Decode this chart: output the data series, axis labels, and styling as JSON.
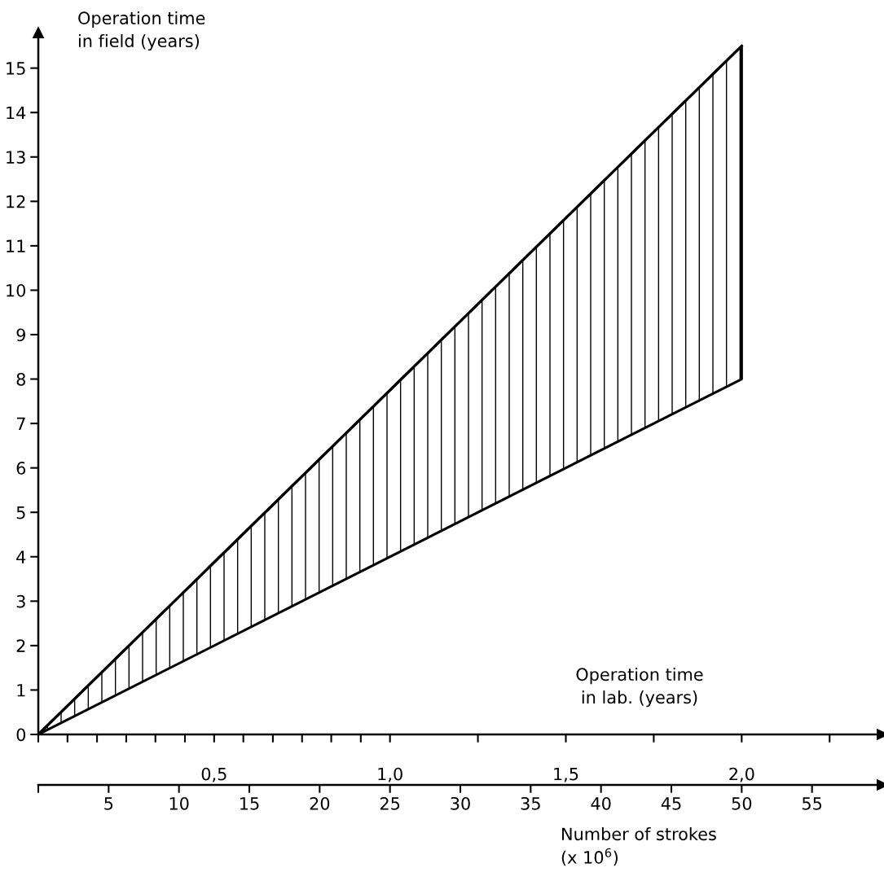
{
  "chart_data": {
    "type": "line",
    "xlabel": "Operation time\nin lab. (years)",
    "ylabel": "Operation time\nin field (years)",
    "x2label": "Number of strokes\n(x 10$^{6}$)",
    "series": [
      {
        "x": [
          0,
          2.0
        ],
        "values": [
          0,
          15.5
        ],
        "lower": [
          0,
          8
        ],
        "upper": [
          0,
          15.5
        ],
        "color": "#000000"
      }
    ],
    "xlim": [
      0,
      2.4
    ],
    "xticks": [
      {
        "value": 0,
        "label": null
      },
      {
        "value": 0.083,
        "label": null
      },
      {
        "value": 0.167,
        "label": null
      },
      {
        "value": 0.25,
        "label": null
      },
      {
        "value": 0.333,
        "label": null
      },
      {
        "value": 0.417,
        "label": null
      },
      {
        "value": 0.5,
        "label": "0,5"
      },
      {
        "value": 0.583,
        "label": null
      },
      {
        "value": 0.667,
        "label": null
      },
      {
        "value": 0.75,
        "label": null
      },
      {
        "value": 0.833,
        "label": null
      },
      {
        "value": 0.917,
        "label": null
      },
      {
        "value": 1.0,
        "label": "1,0"
      },
      {
        "value": 1.25,
        "label": null
      },
      {
        "value": 1.5,
        "label": "1,5"
      },
      {
        "value": 1.75,
        "label": null
      },
      {
        "value": 2.0,
        "label": "2,0"
      },
      {
        "value": 2.25,
        "label": null
      }
    ],
    "ylim": [
      0,
      15.8
    ],
    "yticks": [
      0,
      1,
      2,
      3,
      4,
      5,
      6,
      7,
      8,
      9,
      10,
      11,
      12,
      13,
      14,
      15
    ],
    "x2lim": [
      0,
      60
    ],
    "x2ticks": [
      {
        "value": 0,
        "label": null
      },
      5,
      10,
      15,
      20,
      25,
      30,
      35,
      40,
      45,
      50,
      55
    ]
  }
}
